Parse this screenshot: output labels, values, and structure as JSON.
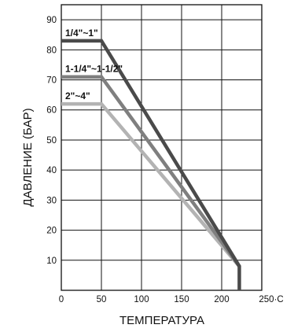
{
  "chart_data": {
    "type": "line",
    "xlabel": "ТЕМПЕРАТУРА",
    "ylabel": "ДАВЛЕНИЕ (БАР)",
    "xlim": [
      0,
      250
    ],
    "ylim": [
      0,
      95
    ],
    "x_ticks": [
      "0",
      "50",
      "100",
      "150",
      "200",
      "250·C"
    ],
    "x_tick_values": [
      0,
      50,
      100,
      150,
      200,
      250
    ],
    "y_ticks": [
      "10",
      "20",
      "30",
      "40",
      "50",
      "60",
      "70",
      "80",
      "90"
    ],
    "y_tick_values": [
      10,
      20,
      30,
      40,
      50,
      60,
      70,
      80,
      90
    ],
    "grid": true,
    "series": [
      {
        "name": "1/4\"~1\"",
        "color": "#4a4a4a",
        "x": [
          0,
          50,
          222,
          222
        ],
        "y": [
          83,
          83,
          8,
          0
        ]
      },
      {
        "name": "1-1/4\"~1-1/2\"",
        "color": "#7f7f7f",
        "x": [
          0,
          50,
          222
        ],
        "y": [
          71,
          71,
          8
        ]
      },
      {
        "name": "2\"~4\"",
        "color": "#b3b3b3",
        "x": [
          0,
          50,
          222
        ],
        "y": [
          62,
          62,
          8
        ]
      }
    ]
  }
}
